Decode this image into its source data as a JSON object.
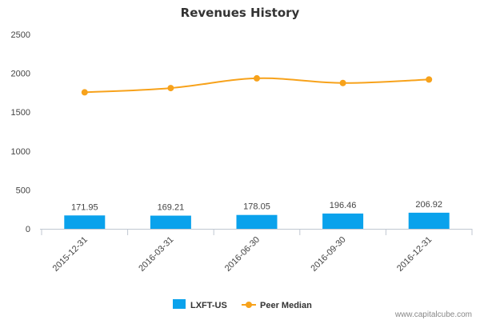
{
  "chart_data": {
    "type": "bar",
    "title": "Revenues History",
    "categories": [
      "2015-12-31",
      "2016-03-31",
      "2016-06-30",
      "2016-09-30",
      "2016-12-31"
    ],
    "series": [
      {
        "name": "LXFT-US",
        "kind": "bar",
        "color": "#0aa2ec",
        "values": [
          171.95,
          169.21,
          178.05,
          196.46,
          206.92
        ],
        "labels": [
          "171.95",
          "169.21",
          "178.05",
          "196.46",
          "206.92"
        ]
      },
      {
        "name": "Peer Median",
        "kind": "line",
        "color": "#f7a21b",
        "values": [
          1755,
          1810,
          1935,
          1875,
          1920
        ]
      }
    ],
    "yticks": [
      0,
      500,
      1000,
      1500,
      2000,
      2500
    ],
    "ylim": [
      0,
      2500
    ],
    "xlabel": "",
    "ylabel": "",
    "legend": "bottom-center"
  },
  "credit": "www.capitalcube.com"
}
